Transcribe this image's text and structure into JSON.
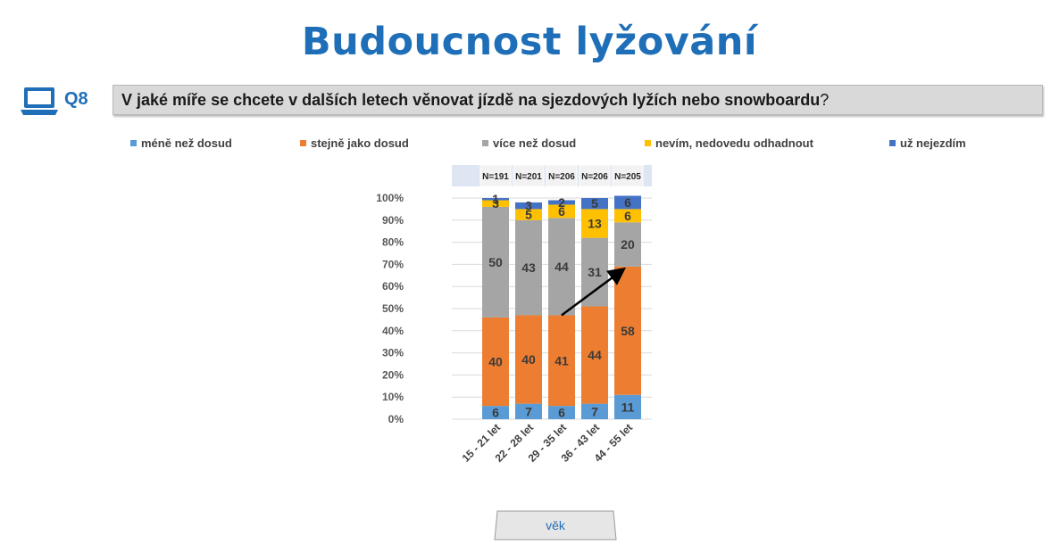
{
  "page": {
    "title": "Budoucnost lyžování",
    "question_id": "Q8",
    "question_text": "V jaké míře se chcete v dalších letech věnovat jízdě na sjezdových lyžích nebo snowboardu",
    "question_mark": "?",
    "icon": "laptop-icon",
    "x_axis_button_label": "věk"
  },
  "colors": {
    "title": "#1f6fb8",
    "accent": "#1f6fb8",
    "question_bg": "#d9d9d9"
  },
  "chart_data": {
    "type": "bar",
    "stacked": true,
    "percent": true,
    "categories": [
      "15 - 21 let",
      "22 - 28 let",
      "29 - 35 let",
      "36 - 43 let",
      "44 - 55 let"
    ],
    "n_labels": [
      "N=191",
      "N=201",
      "N=206",
      "N=206",
      "N=205"
    ],
    "series": [
      {
        "name": "méně než dosud",
        "color": "#5b9bd5",
        "values": [
          6,
          7,
          6,
          7,
          11
        ]
      },
      {
        "name": "stejně jako dosud",
        "color": "#ed7d31",
        "values": [
          40,
          40,
          41,
          44,
          58
        ]
      },
      {
        "name": "více než dosud",
        "color": "#a5a5a5",
        "values": [
          50,
          43,
          44,
          31,
          20
        ]
      },
      {
        "name": "nevím, nedovedu odhadnout",
        "color": "#ffc000",
        "values": [
          3,
          5,
          6,
          13,
          6
        ]
      },
      {
        "name": "už nejezdím",
        "color": "#4472c4",
        "values": [
          1,
          3,
          2,
          5,
          6
        ]
      }
    ],
    "ylim": [
      0,
      100
    ],
    "yticks": [
      "0%",
      "10%",
      "20%",
      "30%",
      "40%",
      "50%",
      "60%",
      "70%",
      "80%",
      "90%",
      "100%"
    ],
    "grid": true,
    "legend_position": "top",
    "annotation": "arrow-from-29-35-to-44-55"
  }
}
